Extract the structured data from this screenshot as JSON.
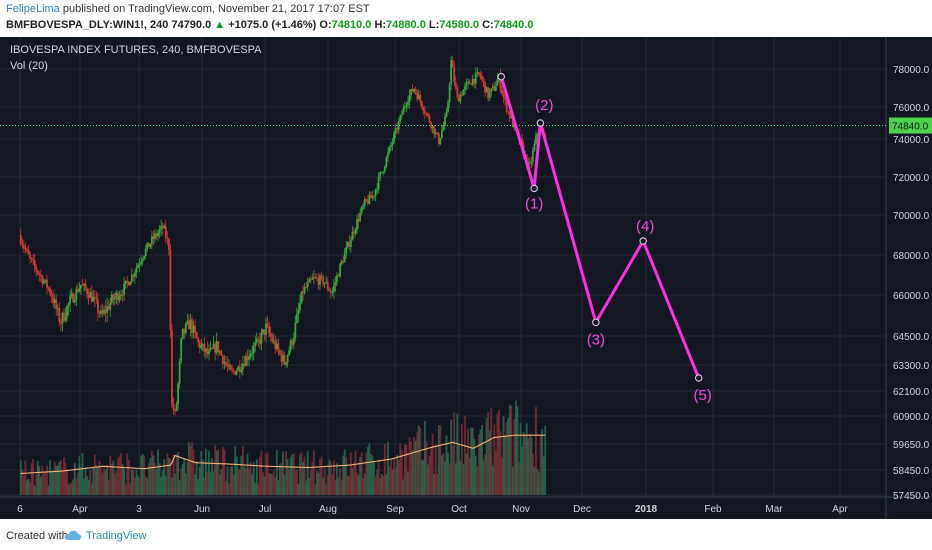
{
  "header": {
    "author": "FelipeLima",
    "published": "published on TradingView.com, November 21, 2017 17:07 EST",
    "symbol": "BMFBOVESPA_DLY:WIN1!, 240",
    "last": "74790.0",
    "change_arrow": "▲",
    "change": "+1075.0 (+1.46%)",
    "ohlc": {
      "o_label": "O:",
      "o": "74810.0",
      "h_label": "H:",
      "h": "74880.0",
      "l_label": "L:",
      "l": "74580.0",
      "c_label": "C:",
      "c": "74840.0"
    }
  },
  "footer": {
    "created_with": "Created with",
    "brand": "TradingView"
  },
  "chart_data": {
    "type": "line",
    "title": "IBOVESPA INDEX FUTURES, 240, BMFBOVESPA",
    "indicator": "Vol (20)",
    "x_ticks": [
      "6",
      "Apr",
      "3",
      "Jun",
      "Jul",
      "Aug",
      "Sep",
      "Oct",
      "Nov",
      "Dec",
      "2018",
      "Feb",
      "Mar",
      "Apr"
    ],
    "y_ticks": [
      78000,
      76000,
      74000,
      72000,
      70000,
      68000,
      66000,
      64500,
      63300,
      62100,
      60900,
      59650,
      58450,
      57450
    ],
    "y_ticks_text": [
      "78000.0",
      "76000.0",
      "74000.0",
      "72000.0",
      "70000.0",
      "68000.0",
      "66000.0",
      "64500.0",
      "63300.0",
      "62100.0",
      "60900.0",
      "59650.0",
      "58450.0",
      "57450.0"
    ],
    "current_price": 74840,
    "current_price_label": "74840.0",
    "price_path": [
      [
        0,
        69000
      ],
      [
        0.5,
        67800
      ],
      [
        1,
        67000
      ],
      [
        1.5,
        66200
      ],
      [
        2,
        65000
      ],
      [
        2.5,
        65800
      ],
      [
        3,
        66500
      ],
      [
        3.5,
        66000
      ],
      [
        4,
        65200
      ],
      [
        4.5,
        65800
      ],
      [
        5,
        66200
      ],
      [
        5.5,
        67000
      ],
      [
        6,
        68000
      ],
      [
        6.5,
        68800
      ],
      [
        7,
        69400
      ],
      [
        7.3,
        68300
      ],
      [
        7.4,
        61500
      ],
      [
        7.6,
        60900
      ],
      [
        7.9,
        64500
      ],
      [
        8.3,
        65000
      ],
      [
        8.7,
        64200
      ],
      [
        9.2,
        63700
      ],
      [
        9.6,
        64100
      ],
      [
        10,
        63400
      ],
      [
        10.3,
        62900
      ],
      [
        10.7,
        63200
      ],
      [
        11.2,
        63800
      ],
      [
        11.6,
        64200
      ],
      [
        12,
        64800
      ],
      [
        12.5,
        64000
      ],
      [
        12.9,
        63400
      ],
      [
        13.3,
        64400
      ],
      [
        13.8,
        66200
      ],
      [
        14.3,
        66800
      ],
      [
        14.8,
        66700
      ],
      [
        15.2,
        66100
      ],
      [
        15.6,
        67400
      ],
      [
        16,
        68500
      ],
      [
        16.4,
        69600
      ],
      [
        16.8,
        70600
      ],
      [
        17.2,
        71000
      ],
      [
        17.6,
        72200
      ],
      [
        18,
        73400
      ],
      [
        18.4,
        74800
      ],
      [
        18.8,
        76300
      ],
      [
        19.2,
        77000
      ],
      [
        19.6,
        76100
      ],
      [
        20,
        75000
      ],
      [
        20.4,
        73900
      ],
      [
        20.8,
        75600
      ],
      [
        21,
        78400
      ],
      [
        21.3,
        76400
      ],
      [
        21.6,
        76900
      ],
      [
        22,
        77400
      ],
      [
        22.4,
        77700
      ],
      [
        22.8,
        76600
      ],
      [
        23.1,
        77000
      ],
      [
        23.3,
        77600
      ],
      [
        23.6,
        76300
      ],
      [
        24,
        74900
      ],
      [
        24.4,
        73700
      ],
      [
        24.8,
        72400
      ],
      [
        25.1,
        73900
      ],
      [
        25.3,
        74900
      ],
      [
        25.5,
        74200
      ]
    ],
    "volume_path": [
      [
        0,
        0.18
      ],
      [
        2,
        0.2
      ],
      [
        4,
        0.24
      ],
      [
        6,
        0.22
      ],
      [
        7.3,
        0.25
      ],
      [
        7.5,
        0.33
      ],
      [
        8.5,
        0.27
      ],
      [
        10,
        0.26
      ],
      [
        12,
        0.24
      ],
      [
        14,
        0.23
      ],
      [
        16,
        0.25
      ],
      [
        18,
        0.3
      ],
      [
        20,
        0.4
      ],
      [
        21,
        0.44
      ],
      [
        22,
        0.39
      ],
      [
        23,
        0.48
      ],
      [
        24,
        0.5
      ],
      [
        25.5,
        0.5
      ]
    ],
    "waves": [
      {
        "label": "",
        "x": 23.4,
        "y": 77600
      },
      {
        "label": "(1)",
        "x": 25.0,
        "y": 71400
      },
      {
        "label": "(2)",
        "x": 25.3,
        "y": 75000
      },
      {
        "label": "(3)",
        "x": 28.0,
        "y": 65000
      },
      {
        "label": "(4)",
        "x": 30.3,
        "y": 68700
      },
      {
        "label": "(5)",
        "x": 33.0,
        "y": 62700
      }
    ],
    "colors": {
      "background": "#131722",
      "grid": "#242838",
      "wave": "#ff2fe0",
      "wave_text": "#ee4fd9",
      "up": "#3aa640",
      "down": "#d43b33",
      "volume_ma": "#f1b178",
      "price_line": "#50e06b",
      "price_badge": "#4fd14f",
      "axis_text": "#d1d4dc"
    }
  }
}
